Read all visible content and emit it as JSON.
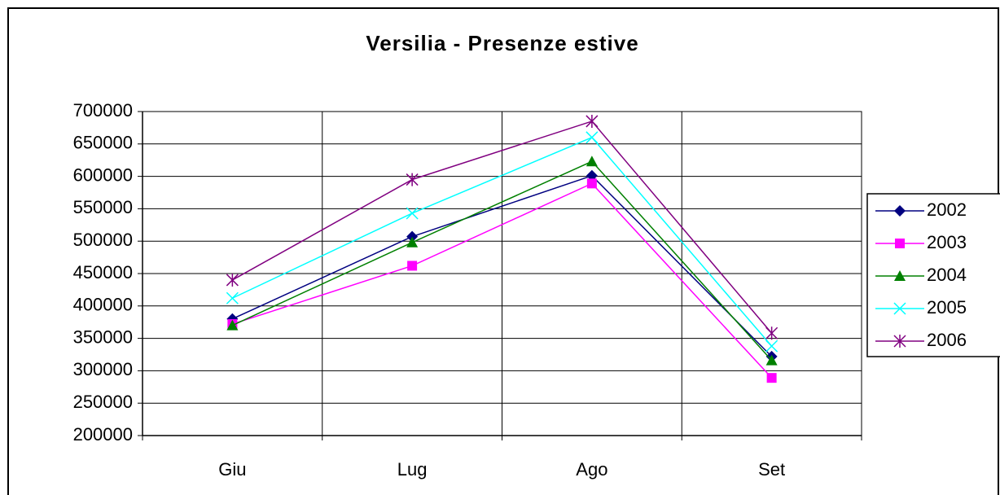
{
  "chart_data": {
    "type": "line",
    "title": "Versilia - Presenze estive",
    "categories": [
      "Giu",
      "Lug",
      "Ago",
      "Set"
    ],
    "series": [
      {
        "name": "2002",
        "color": "#000080",
        "marker": "diamond",
        "values": [
          380000,
          507000,
          601000,
          322000
        ]
      },
      {
        "name": "2003",
        "color": "#ff00ff",
        "marker": "square",
        "values": [
          372000,
          462000,
          589000,
          289000
        ]
      },
      {
        "name": "2004",
        "color": "#008000",
        "marker": "triangle",
        "values": [
          370000,
          498000,
          623000,
          316000
        ]
      },
      {
        "name": "2005",
        "color": "#00ffff",
        "marker": "x",
        "values": [
          412000,
          543000,
          660000,
          338000
        ]
      },
      {
        "name": "2006",
        "color": "#800080",
        "marker": "star",
        "values": [
          440000,
          595000,
          685000,
          358000
        ]
      }
    ],
    "ylim": [
      200000,
      700000
    ],
    "yticks": [
      200000,
      250000,
      300000,
      350000,
      400000,
      450000,
      500000,
      550000,
      600000,
      650000,
      700000
    ],
    "grid": true,
    "legend": "right"
  }
}
